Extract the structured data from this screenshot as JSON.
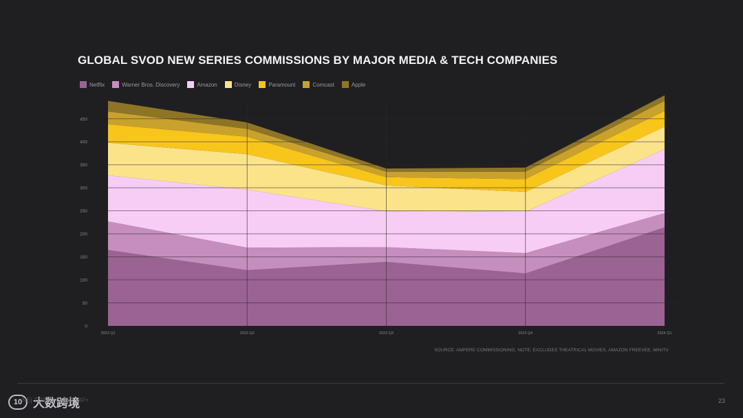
{
  "chart_data": {
    "type": "area",
    "stacked": true,
    "title": "GLOBAL SVOD NEW SERIES COMMISSIONS BY MAJOR MEDIA & TECH COMPANIES",
    "categories": [
      "2023 Q1",
      "2023 Q2",
      "2023 Q3",
      "2023 Q4",
      "2024 Q1"
    ],
    "series": [
      {
        "name": "Netflix",
        "color": "#9b6394",
        "values": [
          165,
          121,
          139,
          114,
          214
        ]
      },
      {
        "name": "Warner Bros. Discovery",
        "color": "#c68dbf",
        "values": [
          62,
          49,
          32,
          44,
          31
        ]
      },
      {
        "name": "Amazon",
        "color": "#f8cdf5",
        "values": [
          100,
          126,
          78,
          90,
          139
        ]
      },
      {
        "name": "Disney",
        "color": "#fbe38a",
        "values": [
          71,
          77,
          56,
          43,
          49
        ]
      },
      {
        "name": "Paramount",
        "color": "#f8c51b",
        "values": [
          40,
          38,
          18,
          28,
          34
        ]
      },
      {
        "name": "Comcast",
        "color": "#c9a22e",
        "values": [
          28,
          17,
          12,
          16,
          22
        ]
      },
      {
        "name": "Apple",
        "color": "#8e7426",
        "values": [
          23,
          14,
          7,
          9,
          12
        ]
      }
    ],
    "ylim": [
      0,
      490
    ],
    "yticks": [
      0,
      50,
      100,
      150,
      200,
      250,
      300,
      350,
      400,
      450
    ],
    "grid": true,
    "legend_position": "top-left",
    "source": "SOURCE: AMPERE COMMISSIONING; NOTE: EXCLUDES THEATRICAL MOVIES, AMAZON FREEVEE, MINITV"
  },
  "footer": {
    "brand": "大数跨境",
    "faint_text": "NE| TOPIC| OVER VIP+",
    "page_number": "23"
  }
}
